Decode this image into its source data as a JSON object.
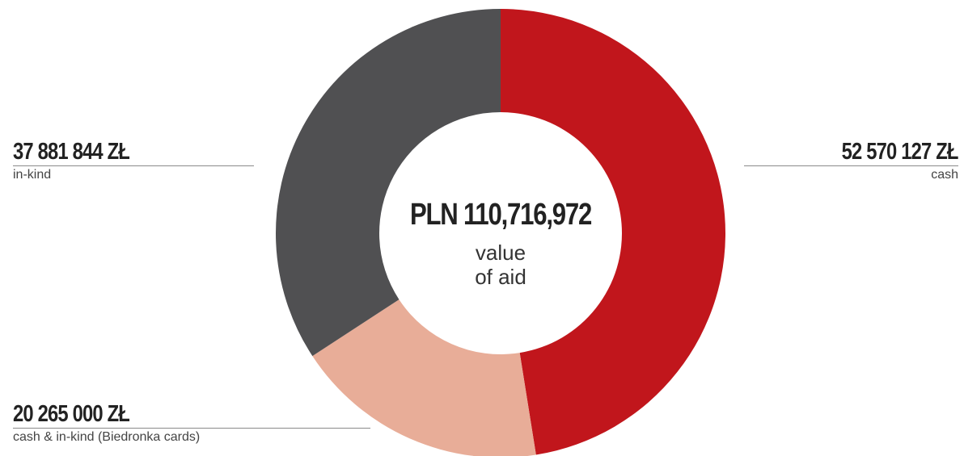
{
  "chart_data": {
    "type": "pie",
    "donut": true,
    "center": {
      "value": "PLN 110,716,972",
      "label_line1": "value",
      "label_line2": "of aid"
    },
    "slices": [
      {
        "label": "cash",
        "value": 52570127,
        "display": "52 570 127 ZŁ",
        "color": "#c1161c"
      },
      {
        "label": "cash & in-kind (Biedronka cards)",
        "value": 20265000,
        "display": "20 265 000 ZŁ",
        "color": "#e8ad98"
      },
      {
        "label": "in-kind",
        "value": 37881844,
        "display": "37 881 844 ZŁ",
        "color": "#505052"
      }
    ]
  }
}
